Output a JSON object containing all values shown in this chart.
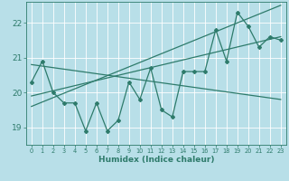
{
  "title": "",
  "xlabel": "Humidex (Indice chaleur)",
  "xlim": [
    -0.5,
    23.5
  ],
  "ylim": [
    18.5,
    22.6
  ],
  "yticks": [
    19,
    20,
    21,
    22
  ],
  "xticks": [
    0,
    1,
    2,
    3,
    4,
    5,
    6,
    7,
    8,
    9,
    10,
    11,
    12,
    13,
    14,
    15,
    16,
    17,
    18,
    19,
    20,
    21,
    22,
    23
  ],
  "bg_color": "#b8dfe8",
  "line_color": "#2e7b6b",
  "x_data": [
    0,
    1,
    2,
    3,
    4,
    5,
    6,
    7,
    8,
    9,
    10,
    11,
    12,
    13,
    14,
    15,
    16,
    17,
    18,
    19,
    20,
    21,
    22,
    23
  ],
  "y_data": [
    20.3,
    20.9,
    20.0,
    19.7,
    19.7,
    18.9,
    19.7,
    18.9,
    19.2,
    20.3,
    19.8,
    20.7,
    19.5,
    19.3,
    20.6,
    20.6,
    20.6,
    21.8,
    20.9,
    22.3,
    21.9,
    21.3,
    21.6,
    21.5
  ],
  "trend1_x": [
    0,
    23
  ],
  "trend1_y": [
    20.8,
    19.8
  ],
  "trend2_x": [
    0,
    23
  ],
  "trend2_y": [
    19.6,
    22.5
  ],
  "trend3_x": [
    0,
    23
  ],
  "trend3_y": [
    19.9,
    21.6
  ]
}
